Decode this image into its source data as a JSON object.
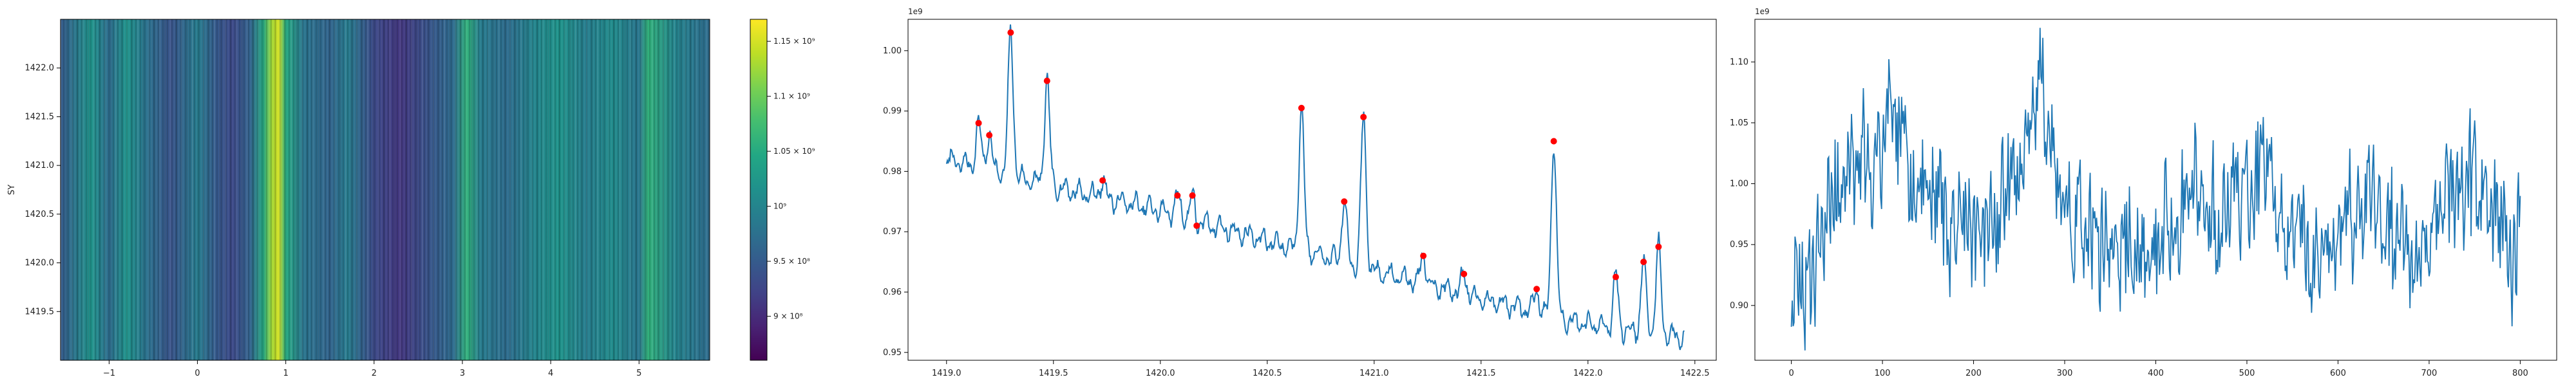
{
  "chart_data": [
    {
      "type": "heatmap",
      "ylabel": "SY",
      "x_ticks": [
        "−1",
        "0",
        "1",
        "2",
        "3",
        "4",
        "5"
      ],
      "x_tick_values": [
        -1,
        0,
        1,
        2,
        3,
        4,
        5
      ],
      "xlim": [
        -1.55,
        5.8
      ],
      "y_ticks": [
        "1419.5",
        "1420.0",
        "1420.5",
        "1421.0",
        "1421.5",
        "1422.0"
      ],
      "y_tick_values": [
        1419.5,
        1420.0,
        1420.5,
        1421.0,
        1421.5,
        1422.0
      ],
      "ylim": [
        1419.0,
        1422.5
      ],
      "colormap": "viridis",
      "colorbar": {
        "ticks": [
          "9 × 10⁸",
          "9.5 × 10⁸",
          "10⁹",
          "1.05 × 10⁹",
          "1.1 × 10⁹",
          "1.15 × 10⁹"
        ],
        "tick_values": [
          0.9,
          0.95,
          1.0,
          1.05,
          1.1,
          1.15
        ],
        "range": [
          0.86,
          1.17
        ]
      },
      "column_profile": [
        {
          "x": -1.55,
          "v": 0.95
        },
        {
          "x": -1.2,
          "v": 1.02
        },
        {
          "x": -1.0,
          "v": 0.97
        },
        {
          "x": -0.8,
          "v": 1.02
        },
        {
          "x": -0.6,
          "v": 0.98
        },
        {
          "x": -0.3,
          "v": 0.94
        },
        {
          "x": 0.0,
          "v": 0.99
        },
        {
          "x": 0.2,
          "v": 0.95
        },
        {
          "x": 0.4,
          "v": 0.93
        },
        {
          "x": 0.6,
          "v": 0.96
        },
        {
          "x": 0.75,
          "v": 1.05
        },
        {
          "x": 0.85,
          "v": 1.13
        },
        {
          "x": 0.92,
          "v": 1.15
        },
        {
          "x": 1.0,
          "v": 1.05
        },
        {
          "x": 1.2,
          "v": 0.98
        },
        {
          "x": 1.5,
          "v": 0.96
        },
        {
          "x": 1.7,
          "v": 0.99
        },
        {
          "x": 2.0,
          "v": 0.93
        },
        {
          "x": 2.3,
          "v": 0.91
        },
        {
          "x": 2.6,
          "v": 0.94
        },
        {
          "x": 2.9,
          "v": 0.97
        },
        {
          "x": 3.05,
          "v": 1.06
        },
        {
          "x": 3.2,
          "v": 0.99
        },
        {
          "x": 3.5,
          "v": 0.97
        },
        {
          "x": 3.8,
          "v": 1.0
        },
        {
          "x": 4.1,
          "v": 1.02
        },
        {
          "x": 4.4,
          "v": 0.99
        },
        {
          "x": 4.7,
          "v": 1.01
        },
        {
          "x": 5.0,
          "v": 0.98
        },
        {
          "x": 5.1,
          "v": 1.06
        },
        {
          "x": 5.4,
          "v": 1.0
        },
        {
          "x": 5.8,
          "v": 0.97
        }
      ]
    },
    {
      "type": "line",
      "exponent_label": "1e9",
      "x_ticks": [
        "1419.0",
        "1419.5",
        "1420.0",
        "1420.5",
        "1421.0",
        "1421.5",
        "1422.0",
        "1422.5"
      ],
      "x_tick_values": [
        1419.0,
        1419.5,
        1420.0,
        1420.5,
        1421.0,
        1421.5,
        1422.0,
        1422.5
      ],
      "xlim": [
        1418.82,
        1422.6
      ],
      "y_ticks": [
        "0.95",
        "0.96",
        "0.97",
        "0.98",
        "0.99",
        "1.00"
      ],
      "y_tick_values": [
        0.95,
        0.96,
        0.97,
        0.98,
        0.99,
        1.0
      ],
      "ylim": [
        0.9487,
        1.0052
      ],
      "line_color": "#1f77b4",
      "marker_color": "#ff0000",
      "baseline": [
        {
          "x": 1419.0,
          "y": 0.982
        },
        {
          "x": 1419.5,
          "y": 0.9775
        },
        {
          "x": 1420.0,
          "y": 0.9735
        },
        {
          "x": 1420.5,
          "y": 0.9685
        },
        {
          "x": 1421.0,
          "y": 0.9635
        },
        {
          "x": 1421.5,
          "y": 0.959
        },
        {
          "x": 1422.0,
          "y": 0.9545
        },
        {
          "x": 1422.45,
          "y": 0.9525
        }
      ],
      "peaks": [
        {
          "x": 1419.15,
          "y": 0.988
        },
        {
          "x": 1419.2,
          "y": 0.986
        },
        {
          "x": 1419.3,
          "y": 1.003
        },
        {
          "x": 1419.47,
          "y": 0.995
        },
        {
          "x": 1419.73,
          "y": 0.9785
        },
        {
          "x": 1420.08,
          "y": 0.976
        },
        {
          "x": 1420.15,
          "y": 0.976
        },
        {
          "x": 1420.17,
          "y": 0.971
        },
        {
          "x": 1420.66,
          "y": 0.9905
        },
        {
          "x": 1420.86,
          "y": 0.975
        },
        {
          "x": 1420.95,
          "y": 0.989
        },
        {
          "x": 1421.23,
          "y": 0.966
        },
        {
          "x": 1421.42,
          "y": 0.963
        },
        {
          "x": 1421.76,
          "y": 0.9605
        },
        {
          "x": 1421.84,
          "y": 0.985
        },
        {
          "x": 1422.13,
          "y": 0.9625
        },
        {
          "x": 1422.26,
          "y": 0.965
        },
        {
          "x": 1422.33,
          "y": 0.9675
        }
      ]
    },
    {
      "type": "line",
      "exponent_label": "1e9",
      "x_ticks": [
        "0",
        "100",
        "200",
        "300",
        "400",
        "500",
        "600",
        "700",
        "800"
      ],
      "x_tick_values": [
        0,
        100,
        200,
        300,
        400,
        500,
        600,
        700,
        800
      ],
      "xlim": [
        -40,
        840
      ],
      "y_ticks": [
        "0.90",
        "0.95",
        "1.00",
        "1.05",
        "1.10"
      ],
      "y_tick_values": [
        0.9,
        0.95,
        1.0,
        1.05,
        1.1
      ],
      "ylim": [
        0.855,
        1.135
      ],
      "line_color": "#1f77b4",
      "x_range": [
        0,
        800
      ],
      "envelope": [
        {
          "x": 0,
          "y": 0.92
        },
        {
          "x": 10,
          "y": 0.9
        },
        {
          "x": 20,
          "y": 0.915
        },
        {
          "x": 30,
          "y": 0.955
        },
        {
          "x": 40,
          "y": 0.98
        },
        {
          "x": 55,
          "y": 1.0
        },
        {
          "x": 80,
          "y": 1.01
        },
        {
          "x": 100,
          "y": 1.03
        },
        {
          "x": 110,
          "y": 1.06
        },
        {
          "x": 130,
          "y": 1.0
        },
        {
          "x": 160,
          "y": 0.985
        },
        {
          "x": 190,
          "y": 0.96
        },
        {
          "x": 220,
          "y": 0.97
        },
        {
          "x": 250,
          "y": 1.0
        },
        {
          "x": 262,
          "y": 1.04
        },
        {
          "x": 272,
          "y": 1.085
        },
        {
          "x": 285,
          "y": 1.02
        },
        {
          "x": 300,
          "y": 0.98
        },
        {
          "x": 330,
          "y": 0.95
        },
        {
          "x": 360,
          "y": 0.94
        },
        {
          "x": 390,
          "y": 0.955
        },
        {
          "x": 420,
          "y": 0.96
        },
        {
          "x": 440,
          "y": 1.0
        },
        {
          "x": 470,
          "y": 0.97
        },
        {
          "x": 500,
          "y": 0.99
        },
        {
          "x": 520,
          "y": 1.02
        },
        {
          "x": 540,
          "y": 0.96
        },
        {
          "x": 570,
          "y": 0.94
        },
        {
          "x": 600,
          "y": 0.96
        },
        {
          "x": 630,
          "y": 0.985
        },
        {
          "x": 660,
          "y": 0.95
        },
        {
          "x": 690,
          "y": 0.94
        },
        {
          "x": 710,
          "y": 0.97
        },
        {
          "x": 740,
          "y": 1.0
        },
        {
          "x": 760,
          "y": 1.01
        },
        {
          "x": 780,
          "y": 0.97
        },
        {
          "x": 790,
          "y": 0.93
        },
        {
          "x": 800,
          "y": 0.955
        }
      ]
    }
  ]
}
